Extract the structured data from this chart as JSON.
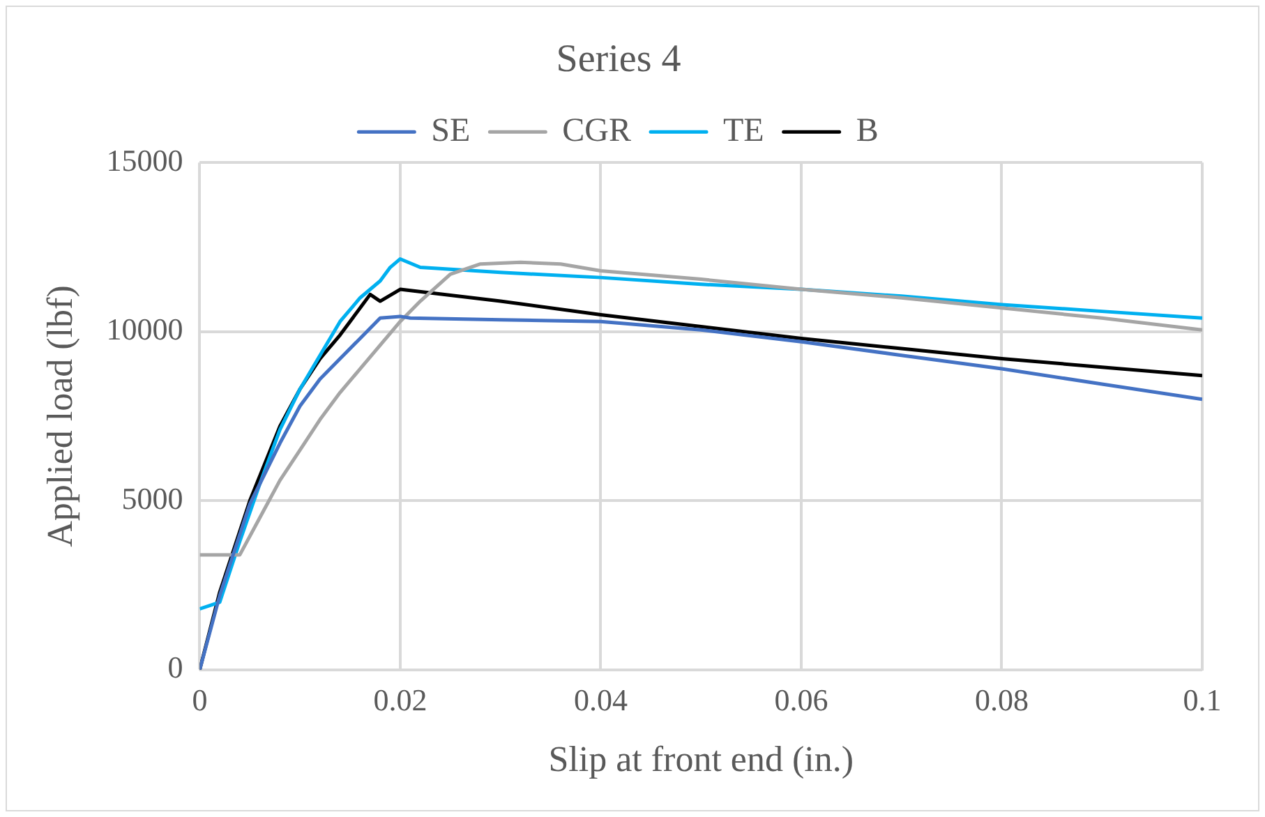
{
  "chart_data": {
    "type": "line",
    "title": "Series 4",
    "xlabel": "Slip at front end (in.)",
    "ylabel": "Applied load (lbf)",
    "xlim": [
      0,
      0.1
    ],
    "xticks": [
      0,
      0.02,
      0.04,
      0.06,
      0.08,
      0.1
    ],
    "ylim": [
      0,
      15000
    ],
    "yticks": [
      0,
      5000,
      10000,
      15000
    ],
    "grid": true,
    "legend": "top",
    "marker": "none",
    "line_style": "solid",
    "series": [
      {
        "name": "SE",
        "color": "#4472c4",
        "x": [
          0,
          0.002,
          0.005,
          0.008,
          0.01,
          0.012,
          0.014,
          0.016,
          0.018,
          0.02,
          0.021,
          0.03,
          0.04,
          0.05,
          0.06,
          0.07,
          0.08,
          0.09,
          0.1
        ],
        "values": [
          0,
          2200,
          4900,
          6700,
          7800,
          8600,
          9200,
          9800,
          10400,
          10450,
          10400,
          10350,
          10300,
          10050,
          9700,
          9300,
          8900,
          8450,
          8000
        ]
      },
      {
        "name": "CGR",
        "color": "#a5a5a5",
        "x": [
          0,
          0.004,
          0.006,
          0.008,
          0.01,
          0.012,
          0.014,
          0.016,
          0.018,
          0.02,
          0.022,
          0.025,
          0.028,
          0.032,
          0.036,
          0.04,
          0.05,
          0.06,
          0.07,
          0.08,
          0.09,
          0.1
        ],
        "values": [
          3400,
          3400,
          4500,
          5600,
          6500,
          7400,
          8200,
          8900,
          9600,
          10300,
          10900,
          11700,
          12000,
          12050,
          12000,
          11800,
          11550,
          11250,
          11000,
          10700,
          10400,
          10050
        ]
      },
      {
        "name": "TE",
        "color": "#00b0f0",
        "x": [
          0,
          0.002,
          0.004,
          0.006,
          0.008,
          0.01,
          0.012,
          0.014,
          0.016,
          0.018,
          0.019,
          0.02,
          0.022,
          0.03,
          0.04,
          0.05,
          0.06,
          0.07,
          0.08,
          0.09,
          0.1
        ],
        "values": [
          1800,
          2000,
          3800,
          5500,
          7100,
          8300,
          9300,
          10300,
          11000,
          11500,
          11900,
          12150,
          11900,
          11750,
          11600,
          11400,
          11250,
          11050,
          10800,
          10600,
          10400
        ]
      },
      {
        "name": "B",
        "color": "#000000",
        "x": [
          0,
          0.002,
          0.005,
          0.008,
          0.01,
          0.012,
          0.014,
          0.016,
          0.017,
          0.018,
          0.02,
          0.03,
          0.04,
          0.05,
          0.06,
          0.07,
          0.08,
          0.09,
          0.1
        ],
        "values": [
          0,
          2300,
          5000,
          7200,
          8300,
          9200,
          9900,
          10700,
          11100,
          10900,
          11250,
          10900,
          10500,
          10150,
          9800,
          9500,
          9200,
          8950,
          8700
        ]
      }
    ]
  }
}
